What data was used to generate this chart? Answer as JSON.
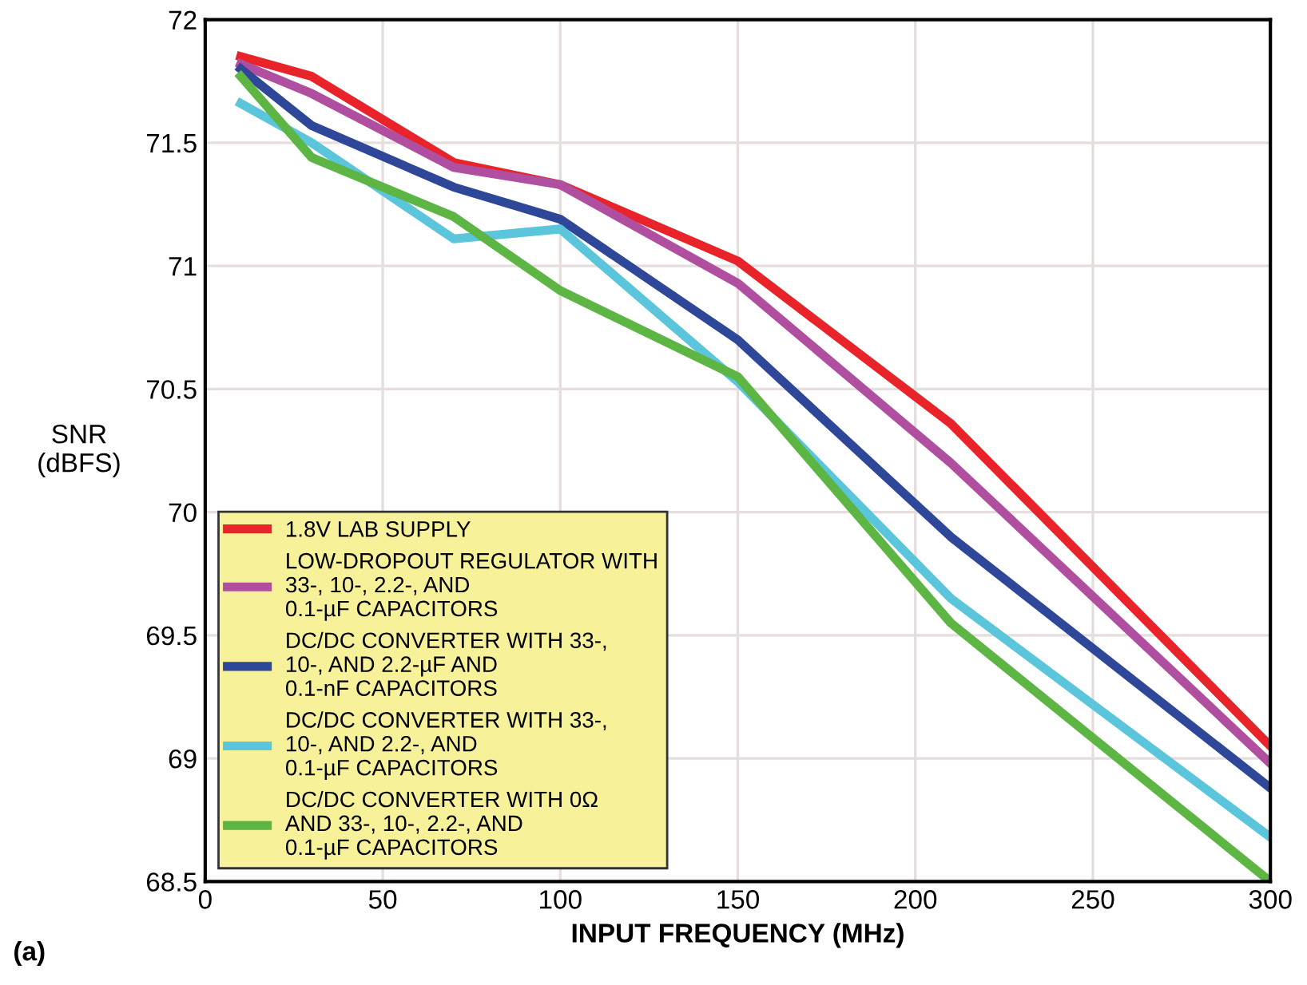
{
  "chart_data": {
    "type": "line",
    "xlabel": "INPUT FREQUENCY (MHz)",
    "ylabel": "SNR\n(dBFS)",
    "annotations": [
      "(a)"
    ],
    "x": [
      10,
      30,
      70,
      100,
      150,
      210,
      300
    ],
    "series": [
      {
        "name": "1.8V LAB SUPPLY",
        "color": "#e8232a",
        "values": [
          71.85,
          71.77,
          71.42,
          71.33,
          71.02,
          70.36,
          69.05
        ]
      },
      {
        "name": "LOW-DROPOUT REGULATOR WITH\n33-, 10-, 2.2-, AND\n0.1-µF CAPACITORS",
        "color": "#b04fa0",
        "values": [
          71.82,
          71.7,
          71.4,
          71.33,
          70.93,
          70.2,
          68.98
        ]
      },
      {
        "name": "DC/DC CONVERTER WITH 33-,\n10-, AND 2.2-µF AND\n0.1-nF CAPACITORS",
        "color": "#2e4799",
        "values": [
          71.8,
          71.57,
          71.32,
          71.19,
          70.7,
          69.9,
          68.88
        ]
      },
      {
        "name": "DC/DC CONVERTER WITH 33-,\n10-, AND 2.2-, AND\n0.1-µF CAPACITORS",
        "color": "#5bc5dc",
        "values": [
          71.66,
          71.5,
          71.11,
          71.15,
          70.53,
          69.65,
          68.68
        ]
      },
      {
        "name": "DC/DC CONVERTER WITH 0Ω\nAND 33-, 10-, 2.2-, AND\n0.1-µF CAPACITORS",
        "color": "#5db544",
        "values": [
          71.77,
          71.44,
          71.2,
          70.9,
          70.55,
          69.55,
          68.5
        ]
      }
    ],
    "xlim": [
      0,
      300
    ],
    "xticks": [
      0,
      50,
      100,
      150,
      200,
      250,
      300
    ],
    "ylim": [
      68.5,
      72
    ],
    "yticks": [
      68.5,
      69,
      69.5,
      70,
      70.5,
      71,
      71.5,
      72
    ],
    "grid": true,
    "legend": "bottom left",
    "marker": "none",
    "line_style": "solid"
  }
}
